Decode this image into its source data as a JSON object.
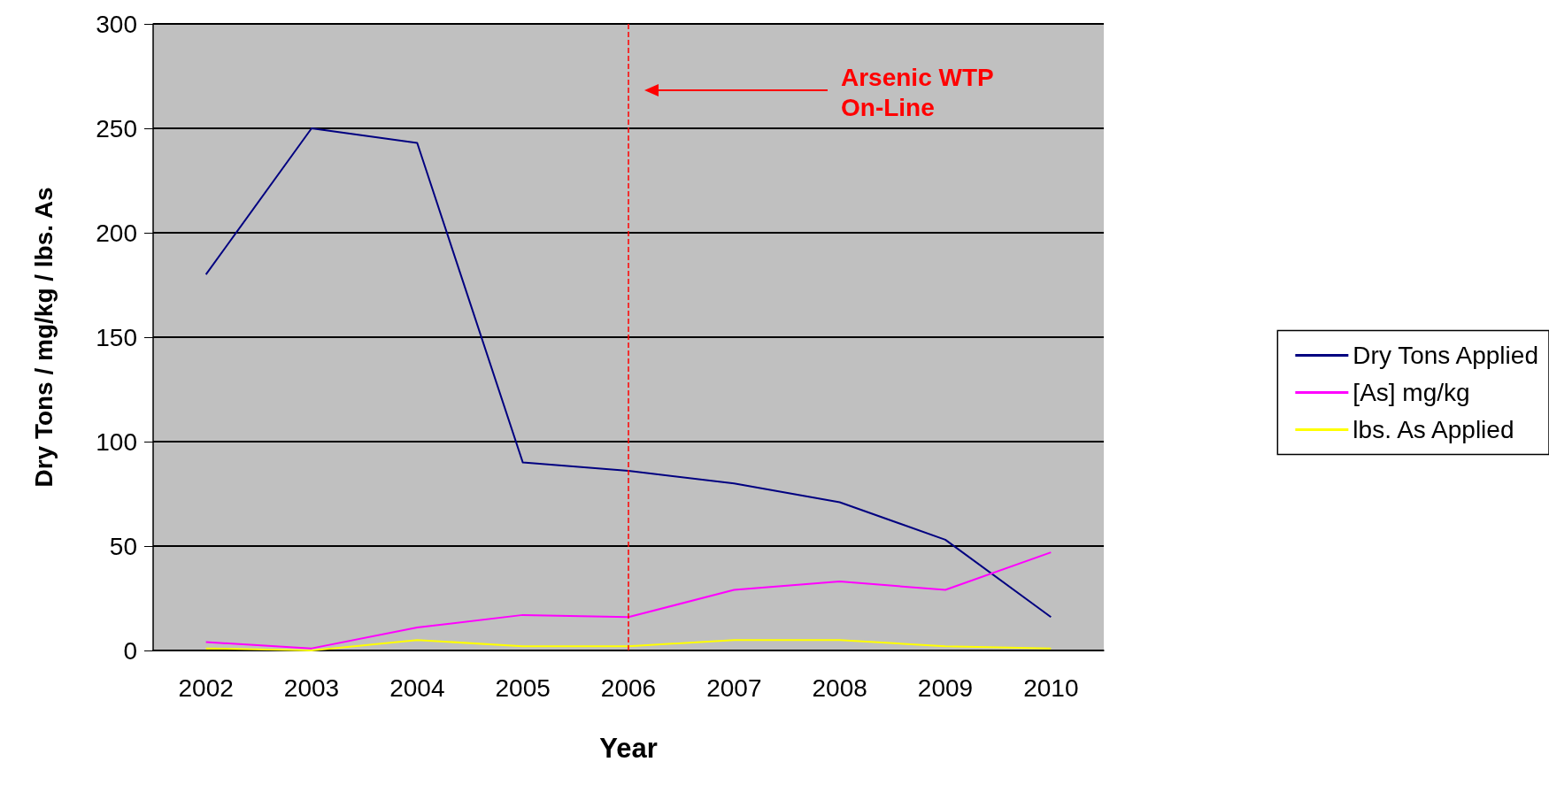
{
  "chart_data": {
    "type": "line",
    "xlabel": "Year",
    "ylabel": "Dry Tons / mg/kg / lbs. As",
    "categories": [
      "2002",
      "2003",
      "2004",
      "2005",
      "2006",
      "2007",
      "2008",
      "2009",
      "2010"
    ],
    "series": [
      {
        "name": "Dry Tons Applied",
        "color": "#000080",
        "values": [
          180,
          250,
          243,
          90,
          86,
          80,
          71,
          53,
          16
        ]
      },
      {
        "name": "[As] mg/kg",
        "color": "#ff00ff",
        "values": [
          4,
          1,
          11,
          17,
          16,
          29,
          33,
          29,
          47
        ]
      },
      {
        "name": "lbs. As Applied",
        "color": "#ffff00",
        "values": [
          1,
          0,
          5,
          2,
          2,
          5,
          5,
          2,
          1
        ]
      }
    ],
    "ylim": [
      0,
      300
    ],
    "yticks": [
      0,
      50,
      100,
      150,
      200,
      250,
      300
    ],
    "grid": "y",
    "legend": "right",
    "marker": "none",
    "line_style": "solid",
    "ref_lines": [
      {
        "axis": "x",
        "value": "2006",
        "color": "#ff0000",
        "line_style": "dashed"
      }
    ],
    "annotations": [
      "Arsenic WTP\nOn-Line"
    ]
  }
}
